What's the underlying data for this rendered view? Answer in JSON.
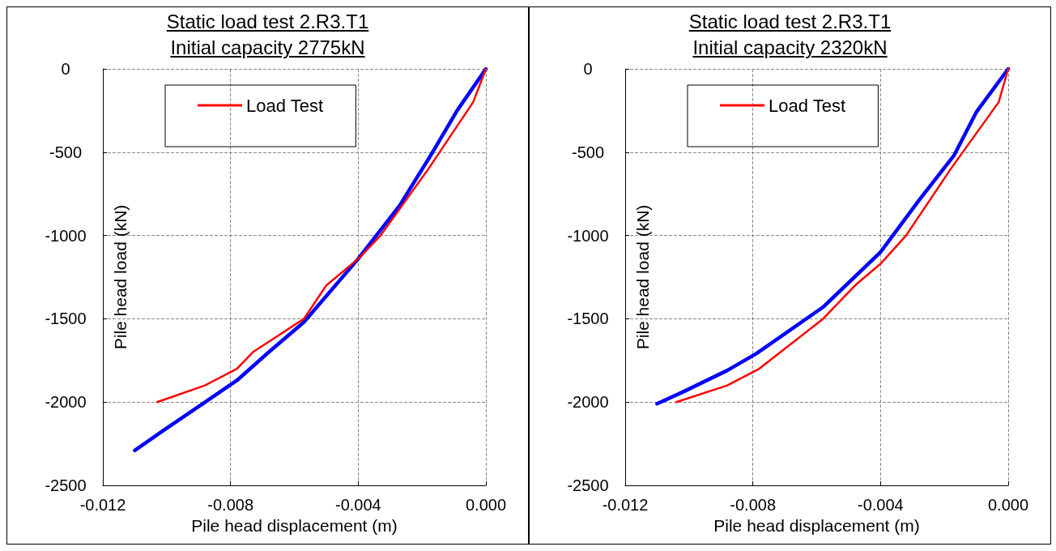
{
  "chart_data": [
    {
      "type": "line",
      "title": "Static load test 2.R3.T1\nInitial capacity 2775kN",
      "xlabel": "Pile head displacement (m)",
      "ylabel": "Pile head load (kN)",
      "xlim": [
        -0.012,
        0
      ],
      "ylim": [
        -2500,
        0
      ],
      "xticks": [
        {
          "value": -0.012,
          "label": "-0.012"
        },
        {
          "value": -0.008,
          "label": "-0.008"
        },
        {
          "value": -0.004,
          "label": "-0.004"
        },
        {
          "value": 0,
          "label": "0.000"
        }
      ],
      "yticks": [
        -2500,
        -2000,
        -1500,
        -1000,
        -500,
        0
      ],
      "grid": true,
      "legend": "top left",
      "marker": "none",
      "line_style": "solid",
      "series": [
        {
          "name": "Load Test",
          "color": "#ff0000",
          "x": [
            0,
            -0.0004,
            -0.0018,
            -0.0033,
            -0.004,
            -0.005,
            -0.0057,
            -0.0065,
            -0.0073,
            -0.0078,
            -0.0088,
            -0.0103
          ],
          "values": [
            0,
            -200,
            -600,
            -1000,
            -1140,
            -1300,
            -1500,
            -1600,
            -1700,
            -1800,
            -1900,
            -2000
          ]
        },
        {
          "color": "#0000ff",
          "x": [
            0,
            -0.0009,
            -0.0017,
            -0.0027,
            -0.004,
            -0.0057,
            -0.0068,
            -0.0078,
            -0.0091,
            -0.0101,
            -0.011
          ],
          "values": [
            0,
            -250,
            -510,
            -820,
            -1140,
            -1520,
            -1700,
            -1870,
            -2040,
            -2170,
            -2290
          ]
        }
      ]
    },
    {
      "type": "line",
      "title": "Static load test 2.R3.T1\nInitial capacity 2320kN",
      "xlabel": "Pile head displacement (m)",
      "ylabel": "Pile head load (kN)",
      "xlim": [
        -0.012,
        0
      ],
      "ylim": [
        -2500,
        0
      ],
      "xticks": [
        {
          "value": -0.012,
          "label": "-0.012"
        },
        {
          "value": -0.008,
          "label": "-0.008"
        },
        {
          "value": -0.004,
          "label": "-0.004"
        },
        {
          "value": 0,
          "label": "0.000"
        }
      ],
      "yticks": [
        -2500,
        -2000,
        -1500,
        -1000,
        -500,
        0
      ],
      "grid": true,
      "legend": "top left",
      "marker": "none",
      "line_style": "solid",
      "series": [
        {
          "name": "Load Test",
          "color": "#ff0000",
          "x": [
            0,
            -0.0003,
            -0.0018,
            -0.0032,
            -0.004,
            -0.0048,
            -0.0058,
            -0.0078,
            -0.0088,
            -0.0104
          ],
          "values": [
            0,
            -200,
            -600,
            -1000,
            -1170,
            -1300,
            -1500,
            -1800,
            -1900,
            -2000
          ]
        },
        {
          "color": "#0000ff",
          "x": [
            0,
            -0.001,
            -0.0017,
            -0.0028,
            -0.004,
            -0.0058,
            -0.0079,
            -0.0088,
            -0.0102,
            -0.011
          ],
          "values": [
            0,
            -260,
            -520,
            -790,
            -1100,
            -1430,
            -1710,
            -1810,
            -1940,
            -2010
          ]
        }
      ]
    }
  ]
}
